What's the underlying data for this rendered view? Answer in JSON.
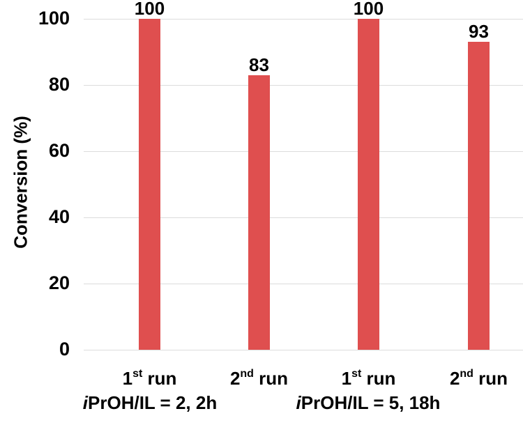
{
  "chart_data": {
    "type": "bar",
    "title": "",
    "xlabel": "",
    "ylabel": "Conversion  (%)",
    "ylim": [
      0,
      100
    ],
    "yticks": [
      0,
      20,
      40,
      60,
      80,
      100
    ],
    "grid": true,
    "categories": [
      "1st run",
      "2nd run",
      "1st run",
      "2nd run"
    ],
    "groups": [
      {
        "label": "iPrOH/IL = 2, 2h",
        "italic_prefix": "i",
        "rest": "PrOH/IL = 2, 2h",
        "categories": [
          "1st run",
          "2nd run"
        ]
      },
      {
        "label": "iPrOH/IL = 5, 18h",
        "italic_prefix": "i",
        "rest": "PrOH/IL = 5, 18h",
        "categories": [
          "1st run",
          "2nd run"
        ]
      }
    ],
    "series": [
      {
        "name": "Conversion",
        "values": [
          100,
          83,
          100,
          93
        ],
        "color": "#df4f4f"
      }
    ],
    "data_labels": [
      "100",
      "83",
      "100",
      "93"
    ]
  },
  "xlabels": [
    {
      "num": "1",
      "sup": "st",
      "rest": " run"
    },
    {
      "num": "2",
      "sup": "nd",
      "rest": " run"
    },
    {
      "num": "1",
      "sup": "st",
      "rest": " run"
    },
    {
      "num": "2",
      "sup": "nd",
      "rest": " run"
    }
  ],
  "ytick_labels": [
    "100",
    "80",
    "60",
    "40",
    "20",
    "0"
  ]
}
